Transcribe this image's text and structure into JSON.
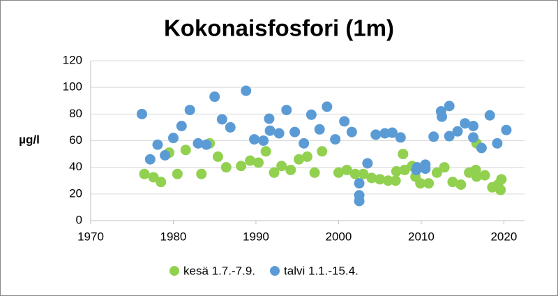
{
  "chart_data": {
    "type": "scatter",
    "title": "Kokonaisfosfori (1m)",
    "y_label": "µg/l",
    "xlim": [
      1970,
      2022.5
    ],
    "xticks": [
      1970,
      1980,
      1990,
      2000,
      2010,
      2020
    ],
    "ylim": [
      0,
      120
    ],
    "yticks": [
      0,
      20,
      40,
      60,
      80,
      100,
      120
    ],
    "grid": true,
    "legend": "bottom",
    "series": [
      {
        "name": "kesä 1.7.-7.9.",
        "color": "#92d050",
        "x": [
          1976.5,
          1977.6,
          1978.5,
          1979.5,
          1980.5,
          1981.5,
          1983.4,
          1984.4,
          1985.4,
          1986.4,
          1988.2,
          1989.3,
          1990.3,
          1991.2,
          1992.2,
          1993.1,
          1994.2,
          1995.2,
          1996.2,
          1997.1,
          1998,
          2000,
          2001,
          2002,
          2003,
          2004,
          2005,
          2006,
          2006.9,
          2007,
          2007.8,
          2008,
          2008.9,
          2009.3,
          2009.9,
          2010.9,
          2011.9,
          2012.8,
          2013.8,
          2014.8,
          2015.8,
          2016.7,
          2016.6,
          2016.7,
          2017.7,
          2018.6,
          2019.3,
          2019.6,
          2019.7
        ],
        "values": [
          35,
          32.5,
          29,
          51,
          35,
          53,
          35,
          58,
          48,
          40,
          41,
          45,
          43.5,
          52,
          36,
          41,
          38,
          46,
          48,
          36,
          52,
          36,
          38,
          35,
          35,
          32,
          31,
          30,
          30,
          37,
          50,
          38,
          41,
          33,
          28,
          28,
          36,
          40,
          29,
          27,
          36,
          58,
          38,
          33,
          34,
          25,
          27,
          23,
          31
        ]
      },
      {
        "name": "talvi 1.1.-15.4.",
        "color": "#5b9bd5",
        "x": [
          1976.2,
          1977.2,
          1978.1,
          1979,
          1980,
          1981,
          1982,
          1983,
          1984,
          1985,
          1985.9,
          1986.9,
          1988.8,
          1989.8,
          1990.9,
          1991.6,
          1991.7,
          1992.8,
          1993.7,
          1994.7,
          1995.8,
          1996.7,
          1997.7,
          1998.6,
          1999.6,
          2000.7,
          2001.6,
          2002.5,
          2002.5,
          2002.5,
          2003.5,
          2004.5,
          2005.6,
          2006.5,
          2007.5,
          2009.4,
          2009.5,
          2010.5,
          2010.5,
          2011.5,
          2012.4,
          2012.5,
          2013.4,
          2013.4,
          2014.4,
          2015.3,
          2016.3,
          2016.3,
          2017.3,
          2018.3,
          2019.2,
          2020.3
        ],
        "values": [
          80,
          46,
          57,
          49,
          62,
          71,
          83,
          58,
          57,
          93,
          76,
          70,
          97.5,
          61,
          60,
          76.5,
          67.5,
          65.5,
          83,
          66.5,
          58,
          79.5,
          68.5,
          85.5,
          61,
          74.5,
          66.5,
          19,
          14.7,
          28,
          43,
          64.5,
          65.5,
          66,
          62.4,
          38,
          40,
          42,
          39,
          63,
          82,
          78,
          86,
          63.4,
          67,
          73,
          71,
          62.4,
          54.5,
          79,
          58,
          68
        ]
      }
    ]
  }
}
